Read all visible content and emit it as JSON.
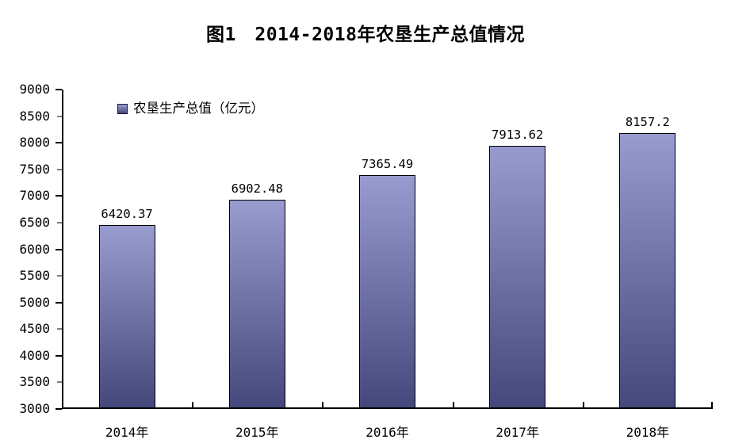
{
  "figure": {
    "title": "图1　2014-2018年农垦生产总值情况"
  },
  "chart_data": {
    "type": "bar",
    "title": "图1　2014-2018年农垦生产总值情况",
    "categories": [
      "2014年",
      "2015年",
      "2016年",
      "2017年",
      "2018年"
    ],
    "series": [
      {
        "name": "农垦生产总值（亿元）",
        "values": [
          6420.37,
          6902.48,
          7365.49,
          7913.62,
          8157.2
        ]
      }
    ],
    "value_labels": [
      "6420.37",
      "6902.48",
      "7365.49",
      "7913.62",
      "8157.2"
    ],
    "xlabel": "",
    "ylabel": "",
    "ylim": [
      3000,
      9000
    ],
    "ytick_step": 500,
    "yticks": [
      3000,
      3500,
      4000,
      4500,
      5000,
      5500,
      6000,
      6500,
      7000,
      7500,
      8000,
      8500,
      9000
    ],
    "grid": false,
    "legend": {
      "label": "农垦生产总值（亿元）",
      "position": "inside-top-left"
    },
    "colors": {
      "bar_top": "#989bce",
      "bar_bottom": "#45487c",
      "bar_border": "#000000",
      "axis": "#000000",
      "text": "#000000",
      "background": "#ffffff"
    }
  }
}
